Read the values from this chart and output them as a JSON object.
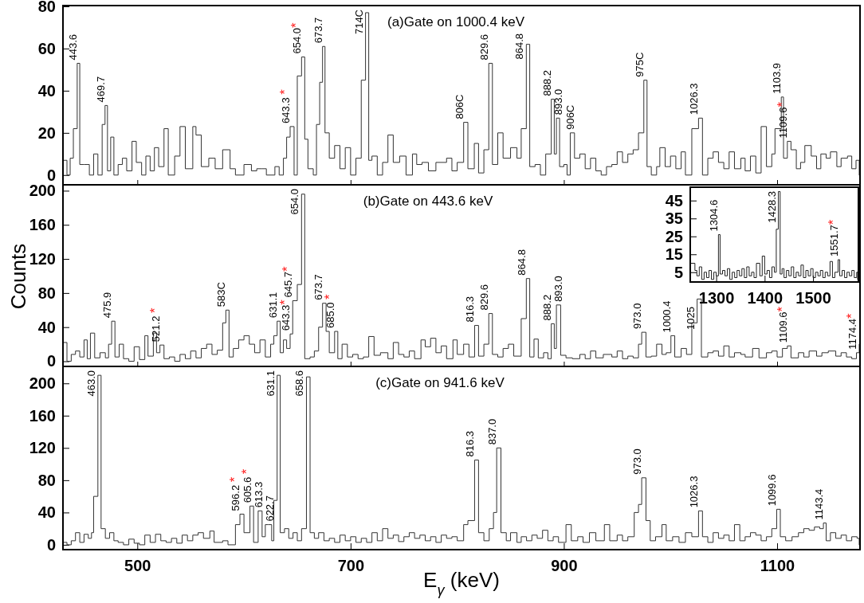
{
  "chart_data": [
    {
      "type": "step",
      "title": "(a)Gate on 1000.4 keV",
      "xlim": [
        431,
        1177
      ],
      "ylim": [
        -5,
        80
      ],
      "xticks": [
        500,
        700,
        900,
        1100
      ],
      "yticks": [
        0,
        20,
        40,
        60,
        80
      ],
      "tick_labels": "y",
      "series": [
        {
          "color": "#333333",
          "x": [
            431,
            434,
            437,
            440,
            443.6,
            446,
            450,
            455,
            459,
            463,
            467,
            469.7,
            472,
            475,
            478,
            482,
            486,
            490,
            495,
            499,
            504,
            508,
            512,
            516,
            520,
            525,
            529,
            535,
            540,
            545,
            552,
            555,
            560,
            567,
            573,
            580,
            587,
            592,
            600,
            607,
            612,
            617,
            621,
            629,
            633,
            637,
            640,
            643.3,
            647,
            650,
            654.0,
            657,
            660,
            665,
            668,
            671,
            673.7,
            676,
            680,
            685,
            690,
            695,
            700,
            705,
            710,
            714,
            717,
            720,
            725,
            730,
            735,
            740,
            746,
            752,
            758,
            762,
            767,
            773,
            780,
            790,
            795,
            800,
            806,
            810,
            816,
            820,
            825,
            829.6,
            833,
            838,
            843,
            850,
            856,
            860,
            864.8,
            868,
            873,
            878,
            883,
            888.2,
            891,
            893.0,
            896,
            900,
            903,
            906,
            910,
            915,
            920,
            925,
            930,
            935,
            940,
            945,
            950,
            955,
            960,
            965,
            970,
            975,
            978,
            982,
            987,
            990,
            995,
            1000,
            1005,
            1010,
            1014,
            1020,
            1026.3,
            1030,
            1035,
            1040,
            1045,
            1050,
            1055,
            1060,
            1066,
            1070,
            1075,
            1080,
            1085,
            1090,
            1095,
            1098,
            1103.9,
            1106,
            1109.6,
            1113,
            1118,
            1122,
            1126,
            1132,
            1137,
            1141,
            1146,
            1150,
            1156,
            1160,
            1166,
            1170,
            1174,
            1177
          ],
          "values": [
            7,
            0,
            8,
            22,
            53,
            5,
            5,
            0,
            10,
            0,
            24,
            33,
            2,
            18,
            0,
            5,
            8,
            2,
            16,
            6,
            0,
            9,
            2,
            13,
            4,
            22,
            0,
            9,
            23,
            3,
            23,
            19,
            4,
            8,
            3,
            12,
            3,
            0,
            5,
            2,
            3,
            3,
            0,
            4,
            0,
            8,
            18,
            23,
            0,
            47,
            56,
            17,
            3,
            0,
            24,
            44,
            61,
            20,
            8,
            14,
            3,
            13,
            0,
            8,
            45,
            77,
            7,
            9,
            0,
            6,
            19,
            6,
            9,
            0,
            10,
            5,
            6,
            2,
            6,
            8,
            2,
            6,
            25,
            3,
            15,
            1,
            12,
            53,
            5,
            20,
            8,
            13,
            8,
            22,
            62,
            4,
            5,
            0,
            10,
            36,
            10,
            27,
            4,
            5,
            0,
            20,
            8,
            10,
            3,
            8,
            2,
            0,
            4,
            5,
            11,
            6,
            10,
            12,
            20,
            45,
            4,
            0,
            4,
            13,
            4,
            9,
            3,
            11,
            0,
            22,
            27,
            0,
            8,
            11,
            6,
            3,
            11,
            3,
            8,
            2,
            9,
            1,
            23,
            4,
            10,
            22,
            37,
            8,
            16,
            12,
            3,
            6,
            14,
            9,
            3,
            10,
            8,
            11,
            4,
            8,
            9,
            3,
            7,
            0
          ]
        }
      ],
      "annotations": [
        {
          "text": "443.6",
          "x": 443.6,
          "y": 53
        },
        {
          "text": "469.7",
          "x": 469.7,
          "y": 33
        },
        {
          "text": "643.3 *",
          "x": 643.3,
          "y": 23
        },
        {
          "text": "654.0*",
          "x": 654.0,
          "y": 56
        },
        {
          "text": "673.7",
          "x": 673.7,
          "y": 61
        },
        {
          "text": "714C",
          "x": 714,
          "y": 77
        },
        {
          "text": "806C",
          "x": 806,
          "y": 25
        },
        {
          "text": "829.6",
          "x": 829.6,
          "y": 53
        },
        {
          "text": "864.8",
          "x": 864.8,
          "y": 62
        },
        {
          "text": "888.2",
          "x": 888.2,
          "y": 36
        },
        {
          "text": "893.0",
          "x": 893.0,
          "y": 27
        },
        {
          "text": "906C",
          "x": 906,
          "y": 20
        },
        {
          "text": "975C",
          "x": 975,
          "y": 45
        },
        {
          "text": "1026.3",
          "x": 1026.3,
          "y": 27
        },
        {
          "text": "1103.9",
          "x": 1103.9,
          "y": 37
        },
        {
          "text": "1109.6*",
          "x": 1109.6,
          "y": 16
        }
      ]
    },
    {
      "type": "step",
      "title": "(b)Gate on 443.6 keV",
      "ylabel": "Counts",
      "xlim": [
        431,
        1177
      ],
      "ylim": [
        -7,
        206
      ],
      "xticks": [
        500,
        700,
        900,
        1100
      ],
      "yticks": [
        0,
        40,
        80,
        120,
        160,
        200
      ],
      "tick_labels": "y",
      "series": [
        {
          "color": "#333333",
          "x": [
            431,
            434,
            438,
            442,
            446,
            450,
            453,
            456,
            460,
            465,
            470,
            473,
            475.9,
            479,
            483,
            487,
            492,
            497,
            502,
            507,
            510,
            515,
            518,
            521.2,
            525,
            530,
            535,
            540,
            545,
            550,
            555,
            560,
            565,
            570,
            575,
            580,
            583,
            586,
            590,
            595,
            600,
            605,
            610,
            615,
            620,
            625,
            628,
            631.1,
            634,
            637,
            640,
            643.3,
            645.7,
            650,
            654.0,
            657,
            662,
            666,
            670,
            673.7,
            677,
            680,
            685.0,
            688,
            692,
            697,
            702,
            707,
            712,
            717,
            722,
            728,
            735,
            740,
            745,
            750,
            755,
            760,
            766,
            770,
            775,
            780,
            785,
            790,
            796,
            800,
            806,
            811,
            816.3,
            820,
            825,
            829.6,
            833,
            838,
            843,
            848,
            853,
            860,
            864.8,
            868,
            872,
            876,
            881,
            885,
            888.2,
            891,
            893.0,
            897,
            902,
            908,
            915,
            920,
            925,
            930,
            937,
            945,
            950,
            955,
            960,
            965,
            970,
            973.0,
            977,
            982,
            987,
            992,
            996,
            1000.4,
            1004,
            1010,
            1015,
            1020,
            1025,
            1029,
            1035,
            1040,
            1045,
            1050,
            1055,
            1060,
            1066,
            1070,
            1077,
            1083,
            1090,
            1095,
            1100,
            1105,
            1109.6,
            1113,
            1120,
            1125,
            1130,
            1137,
            1142,
            1148,
            1155,
            1160,
            1165,
            1170,
            1174.4,
            1177
          ],
          "values": [
            22,
            0,
            8,
            12,
            5,
            25,
            3,
            33,
            4,
            10,
            4,
            20,
            47,
            5,
            20,
            3,
            0,
            17,
            2,
            30,
            6,
            33,
            10,
            19,
            3,
            5,
            0,
            8,
            3,
            12,
            4,
            15,
            20,
            8,
            13,
            45,
            60,
            5,
            15,
            25,
            30,
            20,
            10,
            25,
            5,
            20,
            30,
            47,
            10,
            25,
            15,
            32,
            71,
            90,
            196,
            3,
            5,
            12,
            40,
            68,
            35,
            10,
            35,
            3,
            20,
            5,
            8,
            3,
            5,
            29,
            7,
            10,
            3,
            22,
            8,
            5,
            12,
            3,
            25,
            17,
            27,
            10,
            18,
            3,
            25,
            8,
            20,
            5,
            42,
            6,
            20,
            56,
            8,
            5,
            15,
            20,
            6,
            50,
            97,
            5,
            26,
            4,
            10,
            3,
            44,
            15,
            66,
            7,
            4,
            3,
            8,
            3,
            12,
            4,
            8,
            5,
            12,
            3,
            6,
            4,
            20,
            34,
            5,
            6,
            20,
            8,
            10,
            30,
            5,
            15,
            8,
            45,
            73,
            5,
            10,
            12,
            6,
            18,
            5,
            10,
            8,
            5,
            15,
            4,
            10,
            12,
            5,
            15,
            18,
            4,
            10,
            5,
            12,
            6,
            10,
            12,
            6,
            10,
            5,
            3,
            10,
            20
          ]
        }
      ],
      "annotations": [
        {
          "text": "475.9",
          "x": 475.9,
          "y": 47
        },
        {
          "text": "521.2 *",
          "x": 521.2,
          "y": 19
        },
        {
          "text": "583C",
          "x": 583,
          "y": 60
        },
        {
          "text": "631.1",
          "x": 631.1,
          "y": 47
        },
        {
          "text": "643.3*",
          "x": 643.3,
          "y": 32
        },
        {
          "text": "645.7*",
          "x": 645.7,
          "y": 71
        },
        {
          "text": "654.0",
          "x": 654.0,
          "y": 196
        },
        {
          "text": "673.7",
          "x": 673.7,
          "y": 68
        },
        {
          "text": "685.0 *",
          "x": 685.0,
          "y": 35
        },
        {
          "text": "816.3",
          "x": 816.3,
          "y": 42
        },
        {
          "text": "829.6",
          "x": 829.6,
          "y": 56
        },
        {
          "text": "864.8",
          "x": 864.8,
          "y": 97
        },
        {
          "text": "888.2",
          "x": 888.2,
          "y": 44
        },
        {
          "text": "893.0",
          "x": 893.0,
          "y": 66
        },
        {
          "text": "973.0",
          "x": 973.0,
          "y": 34
        },
        {
          "text": "1000.4",
          "x": 1000.4,
          "y": 30
        },
        {
          "text": "1025",
          "x": 1025,
          "y": 73
        },
        {
          "text": "1109.6*",
          "x": 1109.6,
          "y": 18
        },
        {
          "text": "1174.4*",
          "x": 1174.4,
          "y": 10
        }
      ]
    },
    {
      "type": "step",
      "xlim": [
        1248,
        1592
      ],
      "ylim": [
        0,
        52
      ],
      "xticks": [
        1300,
        1400,
        1500
      ],
      "yticks": [
        5,
        15,
        25,
        35,
        45
      ],
      "series": [
        {
          "color": "#222222",
          "x": [
            1248,
            1256,
            1260,
            1265,
            1270,
            1275,
            1280,
            1285,
            1290,
            1295,
            1300,
            1304.6,
            1308,
            1313,
            1318,
            1323,
            1328,
            1333,
            1338,
            1343,
            1348,
            1353,
            1358,
            1363,
            1368,
            1373,
            1378,
            1383,
            1390,
            1395,
            1400,
            1405,
            1410,
            1415,
            1420,
            1424,
            1428.3,
            1432,
            1436,
            1440,
            1445,
            1450,
            1455,
            1460,
            1465,
            1470,
            1475,
            1480,
            1485,
            1490,
            1495,
            1500,
            1505,
            1510,
            1515,
            1520,
            1525,
            1530,
            1535,
            1540,
            1545,
            1551.7,
            1555,
            1560,
            1565,
            1570,
            1575,
            1580,
            1585,
            1590,
            1592
          ],
          "values": [
            10,
            6,
            3,
            8,
            1,
            5,
            2,
            6,
            1,
            5,
            3,
            26,
            4,
            6,
            3,
            7,
            1,
            5,
            2,
            6,
            3,
            7,
            2,
            8,
            3,
            5,
            2,
            10,
            3,
            14,
            4,
            6,
            2,
            8,
            5,
            29,
            50,
            4,
            7,
            2,
            6,
            3,
            8,
            2,
            5,
            3,
            9,
            2,
            6,
            3,
            7,
            2,
            5,
            3,
            6,
            2,
            5,
            3,
            11,
            2,
            5,
            12,
            3,
            6,
            2,
            5,
            3,
            6,
            2,
            5,
            1
          ]
        }
      ],
      "annotations": [
        {
          "text": "1304.6",
          "x": 1304.6,
          "y": 26
        },
        {
          "text": "1428.3",
          "x": 1428.3,
          "y": 50
        },
        {
          "text": "1551.7*",
          "x": 1551.7,
          "y": 12
        }
      ]
    },
    {
      "type": "step",
      "title": "(c)Gate on 941.6 keV",
      "xlabel": "E$_{γ}$  (keV)",
      "xlim": [
        431,
        1177
      ],
      "ylim": [
        -5,
        220
      ],
      "xticks": [
        500,
        700,
        900,
        1100
      ],
      "yticks": [
        0,
        40,
        80,
        120,
        160,
        200
      ],
      "series": [
        {
          "color": "#333333",
          "x": [
            431,
            434,
            438,
            442,
            446,
            450,
            454,
            457,
            459,
            463.0,
            466,
            470,
            474,
            478,
            482,
            487,
            492,
            497,
            502,
            507,
            512,
            517,
            522,
            527,
            532,
            537,
            542,
            547,
            552,
            557,
            562,
            568,
            572,
            580,
            585,
            592,
            596.2,
            600,
            605.6,
            609,
            613.3,
            617,
            620,
            622.7,
            626,
            628,
            631.1,
            634,
            638,
            642,
            646,
            650,
            654,
            658.6,
            662,
            666,
            670,
            675,
            680,
            685,
            690,
            695,
            700,
            705,
            710,
            715,
            720,
            725,
            730,
            735,
            740,
            745,
            750,
            755,
            760,
            765,
            770,
            775,
            780,
            785,
            790,
            795,
            800,
            806,
            810,
            816.3,
            820,
            825,
            830,
            834,
            837.0,
            841,
            846,
            850,
            856,
            860,
            865,
            870,
            875,
            880,
            885,
            890,
            895,
            902,
            907,
            913,
            918,
            924,
            930,
            938,
            943,
            950,
            955,
            960,
            966,
            970,
            973.0,
            977,
            981,
            986,
            992,
            996,
            1002,
            1008,
            1014,
            1020,
            1026.3,
            1030,
            1035,
            1040,
            1045,
            1050,
            1055,
            1060,
            1065,
            1070,
            1075,
            1080,
            1085,
            1090,
            1095,
            1099.6,
            1103,
            1108,
            1114,
            1120,
            1125,
            1130,
            1135,
            1140,
            1143.4,
            1146,
            1150,
            1155,
            1160,
            1165,
            1170,
            1175,
            1177
          ],
          "values": [
            3,
            0,
            5,
            15,
            3,
            13,
            8,
            15,
            60,
            210,
            20,
            8,
            15,
            5,
            3,
            0,
            7,
            2,
            0,
            12,
            3,
            13,
            5,
            3,
            8,
            2,
            12,
            5,
            12,
            15,
            8,
            17,
            3,
            5,
            0,
            25,
            38,
            15,
            48,
            3,
            42,
            10,
            25,
            25,
            5,
            55,
            210,
            15,
            20,
            8,
            15,
            5,
            20,
            208,
            15,
            8,
            15,
            5,
            8,
            3,
            12,
            5,
            10,
            3,
            8,
            3,
            15,
            5,
            20,
            8,
            12,
            4,
            10,
            15,
            8,
            12,
            5,
            10,
            3,
            12,
            8,
            10,
            5,
            25,
            30,
            105,
            15,
            5,
            20,
            40,
            120,
            15,
            5,
            15,
            3,
            10,
            5,
            12,
            8,
            18,
            5,
            10,
            3,
            25,
            5,
            10,
            3,
            15,
            5,
            25,
            5,
            12,
            5,
            10,
            40,
            50,
            83,
            30,
            5,
            10,
            25,
            5,
            10,
            3,
            15,
            10,
            42,
            10,
            3,
            15,
            8,
            12,
            5,
            25,
            5,
            10,
            15,
            12,
            5,
            10,
            20,
            44,
            10,
            5,
            10,
            15,
            20,
            18,
            22,
            20,
            27,
            5,
            15,
            8,
            12,
            5,
            10,
            8,
            0
          ]
        }
      ],
      "annotations": [
        {
          "text": "463.0",
          "x": 463.0,
          "y": 210
        },
        {
          "text": "596.2 *",
          "x": 596.2,
          "y": 38
        },
        {
          "text": "605.6 *",
          "x": 605.6,
          "y": 48
        },
        {
          "text": "613.3",
          "x": 613.3,
          "y": 42
        },
        {
          "text": "622.7",
          "x": 622.7,
          "y": 25
        },
        {
          "text": "631.1",
          "x": 631.1,
          "y": 210
        },
        {
          "text": "658.6",
          "x": 658.6,
          "y": 208
        },
        {
          "text": "816.3",
          "x": 816.3,
          "y": 105
        },
        {
          "text": "837.0",
          "x": 837.0,
          "y": 120
        },
        {
          "text": "973.0",
          "x": 973.0,
          "y": 83
        },
        {
          "text": "1026.3",
          "x": 1026.3,
          "y": 42
        },
        {
          "text": "1099.6",
          "x": 1099.6,
          "y": 44
        },
        {
          "text": "1143.4",
          "x": 1143.4,
          "y": 27
        }
      ]
    }
  ]
}
